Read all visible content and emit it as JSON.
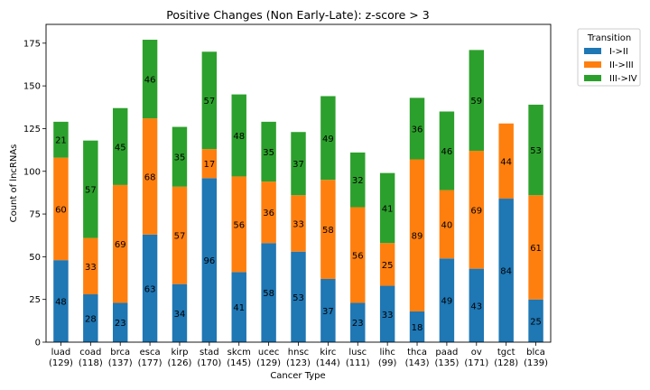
{
  "chart_data": {
    "type": "bar",
    "stacked": true,
    "title": "Positive Changes (Non Early-Late): z-score > 3",
    "xlabel": "Cancer Type",
    "ylabel": "Count of lncRNAs",
    "ylim": [
      0,
      186
    ],
    "yticks": [
      0,
      25,
      50,
      75,
      100,
      125,
      150,
      175
    ],
    "categories": [
      "luad",
      "coad",
      "brca",
      "esca",
      "kirp",
      "stad",
      "skcm",
      "ucec",
      "hnsc",
      "kirc",
      "lusc",
      "lihc",
      "thca",
      "paad",
      "ov",
      "tgct",
      "blca"
    ],
    "category_totals": [
      "(129)",
      "(118)",
      "(137)",
      "(177)",
      "(126)",
      "(170)",
      "(145)",
      "(129)",
      "(123)",
      "(144)",
      "(111)",
      "(99)",
      "(143)",
      "(135)",
      "(171)",
      "(128)",
      "(139)"
    ],
    "series": [
      {
        "name": "I->II",
        "color": "#1f77b4",
        "values": [
          48,
          28,
          23,
          63,
          34,
          96,
          41,
          58,
          53,
          37,
          23,
          33,
          18,
          49,
          43,
          84,
          25
        ]
      },
      {
        "name": "II->III",
        "color": "#ff7f0e",
        "values": [
          60,
          33,
          69,
          68,
          57,
          17,
          56,
          36,
          33,
          58,
          56,
          25,
          89,
          40,
          69,
          44,
          61
        ]
      },
      {
        "name": "III->IV",
        "color": "#2ca02c",
        "values": [
          21,
          57,
          45,
          46,
          35,
          57,
          48,
          35,
          37,
          49,
          32,
          41,
          36,
          46,
          59,
          0,
          53
        ]
      }
    ],
    "legend": {
      "title": "Transition",
      "placement": "outside-top-right"
    },
    "grid": false
  }
}
